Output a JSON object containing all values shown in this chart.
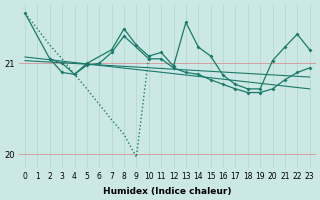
{
  "background_color": "#cce8e4",
  "grid_color_v": "#b8d8d0",
  "grid_color_h": "#d4a0a0",
  "line_color": "#1a7a6a",
  "xlabel": "Humidex (Indice chaleur)",
  "xlim": [
    -0.5,
    23.5
  ],
  "ylim": [
    19.85,
    21.65
  ],
  "yticks": [
    20,
    21
  ],
  "xticks": [
    0,
    1,
    2,
    3,
    4,
    5,
    6,
    7,
    8,
    9,
    10,
    11,
    12,
    13,
    14,
    15,
    16,
    17,
    18,
    19,
    20,
    21,
    22,
    23
  ],
  "dotted_line": {
    "x": [
      0,
      1,
      2,
      3,
      4,
      5,
      6,
      7,
      8,
      9,
      10
    ],
    "y": [
      21.55,
      21.38,
      21.2,
      21.05,
      20.88,
      20.72,
      20.55,
      20.38,
      20.22,
      19.97,
      21.08
    ]
  },
  "trend1": {
    "x": [
      0,
      23
    ],
    "y": [
      21.07,
      20.72
    ]
  },
  "trend2": {
    "x": [
      0,
      23
    ],
    "y": [
      21.03,
      20.85
    ]
  },
  "main_line": {
    "x": [
      0,
      2,
      3,
      4,
      5,
      7,
      8,
      9,
      10,
      11,
      12,
      13,
      14,
      15,
      16,
      17,
      18,
      19,
      20,
      21,
      22,
      23
    ],
    "y": [
      21.55,
      21.05,
      21.0,
      20.88,
      21.0,
      21.15,
      21.38,
      21.2,
      21.08,
      21.12,
      20.97,
      21.45,
      21.18,
      21.08,
      20.87,
      20.77,
      20.72,
      20.72,
      21.03,
      21.18,
      21.32,
      21.15
    ]
  },
  "main_line2": {
    "x": [
      2,
      3,
      4,
      5,
      6,
      7,
      8,
      10,
      11,
      12,
      13,
      14,
      15,
      16,
      17,
      18,
      19,
      20,
      21,
      22,
      23
    ],
    "y": [
      21.05,
      20.9,
      20.88,
      20.98,
      21.0,
      21.12,
      21.3,
      21.05,
      21.05,
      20.95,
      20.9,
      20.88,
      20.82,
      20.77,
      20.72,
      20.68,
      20.68,
      20.72,
      20.82,
      20.9,
      20.95
    ]
  }
}
